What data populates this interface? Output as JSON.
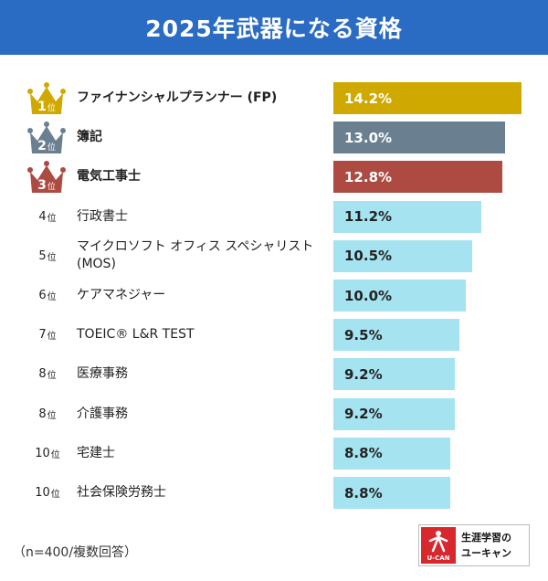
{
  "header": {
    "title": "2025年武器になる資格"
  },
  "rank_suffix": "位",
  "colors": {
    "header_bg": "#2a6bc4",
    "gold": "#d0a900",
    "silver": "#6a8091",
    "bronze": "#ad4a41",
    "default_bar": "#a6e3f0"
  },
  "chart_data": {
    "type": "bar",
    "orientation": "horizontal",
    "title": "2025年武器になる資格",
    "categories": [
      "ファイナンシャルプランナー (FP)",
      "簿記",
      "電気工事士",
      "行政書士",
      "マイクロソフト オフィス スペシャリスト (MOS)",
      "ケアマネジャー",
      "TOEIC® L&R TEST",
      "医療事務",
      "介護事務",
      "宅建士",
      "社会保険労務士"
    ],
    "ranks": [
      "1",
      "2",
      "3",
      "4",
      "5",
      "6",
      "7",
      "8",
      "8",
      "10",
      "10"
    ],
    "values": [
      14.2,
      13.0,
      12.8,
      11.2,
      10.5,
      10.0,
      9.5,
      9.2,
      9.2,
      8.8,
      8.8
    ],
    "value_labels": [
      "14.2%",
      "13.0%",
      "12.8%",
      "11.2%",
      "10.5%",
      "10.0%",
      "9.5%",
      "9.2%",
      "9.2%",
      "8.8%",
      "8.8%"
    ],
    "unit": "%",
    "xlim": [
      0,
      14.7
    ]
  },
  "footer": {
    "note": "（n=400/複数回答）"
  },
  "logo": {
    "line1": "生涯学習の",
    "line2": "ユーキャン",
    "mark": "U-CAN"
  }
}
